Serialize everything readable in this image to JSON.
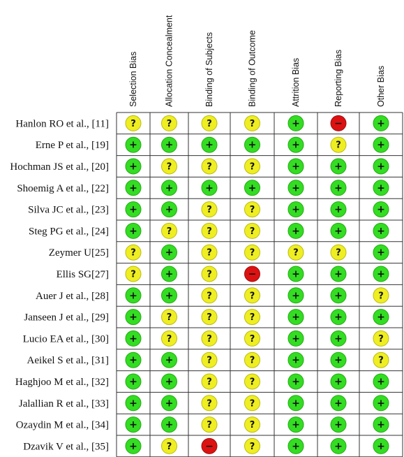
{
  "colors": {
    "low": "#33dd22",
    "low_edge": "#22aa11",
    "unclear": "#eeee22",
    "unclear_edge": "#bbbb11",
    "high": "#dd1111",
    "high_edge": "#991111",
    "grid": "#333333"
  },
  "symbols": {
    "low": "+",
    "unclear": "?",
    "high": "−"
  },
  "chart_data": {
    "type": "table",
    "columns": [
      "Selection Bias",
      "Allocation Concealment",
      "Binding of Subjects",
      "Binding of Outcome",
      "Attrition Bias",
      "Reporting Bias",
      "Other Bias"
    ],
    "rows": [
      {
        "label": "Hanlon RO et al., [11]",
        "ratings": [
          "unclear",
          "unclear",
          "unclear",
          "unclear",
          "low",
          "high",
          "low"
        ]
      },
      {
        "label": "Erne P et al., [19]",
        "ratings": [
          "low",
          "low",
          "low",
          "low",
          "low",
          "unclear",
          "low"
        ]
      },
      {
        "label": "Hochman JS et al., [20]",
        "ratings": [
          "low",
          "unclear",
          "unclear",
          "unclear",
          "low",
          "low",
          "low"
        ]
      },
      {
        "label": "Shoemig A et al., [22]",
        "ratings": [
          "low",
          "low",
          "low",
          "low",
          "low",
          "low",
          "low"
        ]
      },
      {
        "label": "Silva JC et al., [23]",
        "ratings": [
          "low",
          "low",
          "unclear",
          "unclear",
          "low",
          "low",
          "low"
        ]
      },
      {
        "label": "Steg PG et al., [24]",
        "ratings": [
          "low",
          "unclear",
          "unclear",
          "unclear",
          "low",
          "low",
          "low"
        ]
      },
      {
        "label": "Zeymer U[25]",
        "ratings": [
          "unclear",
          "low",
          "unclear",
          "unclear",
          "unclear",
          "unclear",
          "low"
        ]
      },
      {
        "label": "Ellis SG[27]",
        "ratings": [
          "unclear",
          "low",
          "unclear",
          "high",
          "low",
          "low",
          "low"
        ]
      },
      {
        "label": "Auer J et al., [28]",
        "ratings": [
          "low",
          "low",
          "unclear",
          "unclear",
          "low",
          "low",
          "unclear"
        ]
      },
      {
        "label": "Janseen J et al., [29]",
        "ratings": [
          "low",
          "unclear",
          "unclear",
          "unclear",
          "low",
          "low",
          "low"
        ]
      },
      {
        "label": "Lucio EA et al., [30]",
        "ratings": [
          "low",
          "unclear",
          "unclear",
          "unclear",
          "low",
          "low",
          "unclear"
        ]
      },
      {
        "label": "Aeikel S et al., [31]",
        "ratings": [
          "low",
          "low",
          "unclear",
          "unclear",
          "low",
          "low",
          "unclear"
        ]
      },
      {
        "label": "Haghjoo M et al., [32]",
        "ratings": [
          "low",
          "low",
          "unclear",
          "unclear",
          "low",
          "low",
          "low"
        ]
      },
      {
        "label": "Jalallian R et al., [33]",
        "ratings": [
          "low",
          "low",
          "unclear",
          "unclear",
          "low",
          "low",
          "low"
        ]
      },
      {
        "label": "Ozaydin M et al., [34]",
        "ratings": [
          "low",
          "low",
          "unclear",
          "unclear",
          "low",
          "low",
          "low"
        ]
      },
      {
        "label": "Dzavik V et al., [35]",
        "ratings": [
          "low",
          "unclear",
          "high",
          "unclear",
          "low",
          "low",
          "low"
        ]
      }
    ]
  }
}
